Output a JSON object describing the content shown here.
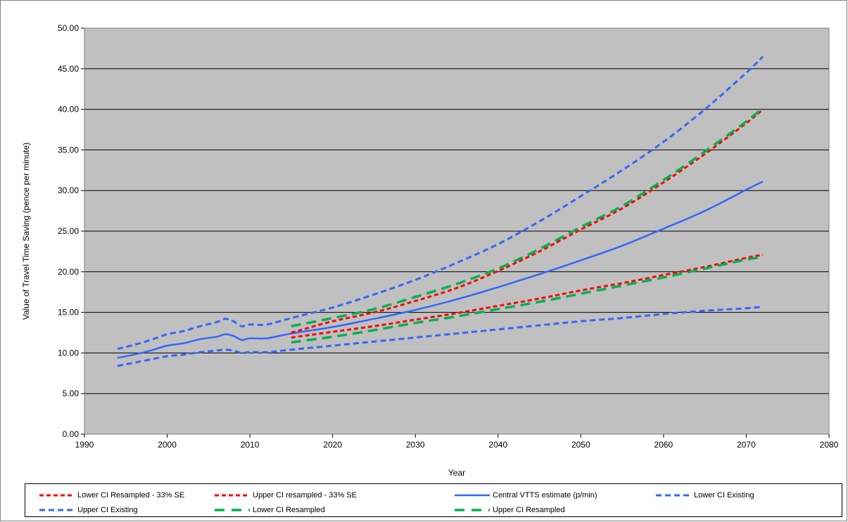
{
  "chart_data": {
    "type": "line",
    "xlabel": "Year",
    "ylabel": "Value of Travel Time Saving (pence per minute)",
    "xlim": [
      1990,
      2080
    ],
    "ylim": [
      0,
      50
    ],
    "x_ticks": [
      "1990",
      "2000",
      "2010",
      "2020",
      "2030",
      "2040",
      "2050",
      "2060",
      "2070",
      "2080"
    ],
    "y_ticks": [
      "0.00",
      "5.00",
      "10.00",
      "15.00",
      "20.00",
      "25.00",
      "30.00",
      "35.00",
      "40.00",
      "45.00",
      "50.00"
    ],
    "grid": "horizontal",
    "legend_position": "bottom",
    "plot_background": "#c0c0c0",
    "series": [
      {
        "name": "Lower CI Resampled - 33% SE",
        "color": "#ff0000",
        "style": "dotted",
        "x": [
          2015,
          2020,
          2025,
          2030,
          2035,
          2040,
          2045,
          2050,
          2055,
          2060,
          2065,
          2070,
          2072
        ],
        "y": [
          11.9,
          12.6,
          13.3,
          14.1,
          14.9,
          15.8,
          16.7,
          17.7,
          18.6,
          19.6,
          20.6,
          21.7,
          22.1
        ]
      },
      {
        "name": "Upper CI resampled - 33% SE",
        "color": "#ff0000",
        "style": "dotted",
        "x": [
          2015,
          2020,
          2025,
          2030,
          2035,
          2040,
          2045,
          2050,
          2055,
          2060,
          2065,
          2070,
          2072
        ],
        "y": [
          12.5,
          13.9,
          15.0,
          16.4,
          18.0,
          20.1,
          22.5,
          25.2,
          27.8,
          31.0,
          34.5,
          38.3,
          40.0
        ]
      },
      {
        "name": "Central VTTS estimate (p/min)",
        "color": "#3366ff",
        "style": "solid",
        "x": [
          1994,
          1996,
          1998,
          2000,
          2002,
          2004,
          2006,
          2007,
          2008,
          2009,
          2010,
          2012,
          2015,
          2020,
          2025,
          2030,
          2035,
          2040,
          2045,
          2050,
          2055,
          2060,
          2065,
          2070,
          2072
        ],
        "y": [
          9.4,
          9.8,
          10.3,
          10.9,
          11.2,
          11.7,
          12.0,
          12.3,
          12.1,
          11.6,
          11.8,
          11.8,
          12.4,
          13.2,
          14.2,
          15.3,
          16.6,
          18.1,
          19.7,
          21.4,
          23.2,
          25.3,
          27.5,
          30.1,
          31.1
        ]
      },
      {
        "name": "Lower CI Existing",
        "color": "#3366ff",
        "style": "dashed",
        "x": [
          1994,
          1996,
          1998,
          2000,
          2002,
          2004,
          2006,
          2007,
          2008,
          2009,
          2010,
          2012,
          2015,
          2020,
          2025,
          2030,
          2035,
          2040,
          2045,
          2050,
          2055,
          2060,
          2065,
          2070,
          2072
        ],
        "y": [
          8.4,
          8.8,
          9.2,
          9.6,
          9.8,
          10.1,
          10.3,
          10.4,
          10.3,
          10.0,
          10.1,
          10.1,
          10.4,
          10.9,
          11.4,
          11.9,
          12.4,
          12.9,
          13.4,
          13.9,
          14.3,
          14.8,
          15.2,
          15.5,
          15.7
        ]
      },
      {
        "name": "Upper CI Existing",
        "color": "#3366ff",
        "style": "dashed",
        "x": [
          1994,
          1996,
          1998,
          2000,
          2002,
          2004,
          2006,
          2007,
          2008,
          2009,
          2010,
          2012,
          2015,
          2020,
          2025,
          2030,
          2035,
          2040,
          2045,
          2050,
          2055,
          2060,
          2065,
          2070,
          2072
        ],
        "y": [
          10.5,
          11.0,
          11.6,
          12.3,
          12.7,
          13.3,
          13.8,
          14.2,
          13.9,
          13.3,
          13.5,
          13.5,
          14.3,
          15.6,
          17.2,
          19.0,
          21.1,
          23.4,
          26.2,
          29.3,
          32.5,
          36.0,
          40.0,
          44.5,
          46.5
        ]
      },
      {
        "name": "Lower CI Resampled",
        "color": "#00b050",
        "style": "longdash",
        "x": [
          2015,
          2020,
          2025,
          2030,
          2035,
          2040,
          2045,
          2050,
          2055,
          2060,
          2065,
          2070,
          2072
        ],
        "y": [
          11.3,
          12.0,
          12.8,
          13.7,
          14.5,
          15.4,
          16.3,
          17.3,
          18.3,
          19.3,
          20.4,
          21.5,
          21.8
        ]
      },
      {
        "name": "Upper CI Resampled",
        "color": "#00b050",
        "style": "longdash",
        "x": [
          2015,
          2020,
          2025,
          2030,
          2035,
          2040,
          2045,
          2050,
          2055,
          2060,
          2065,
          2070,
          2072
        ],
        "y": [
          13.3,
          14.3,
          15.4,
          16.9,
          18.5,
          20.4,
          22.8,
          25.5,
          28.1,
          31.3,
          34.8,
          38.5,
          40.2
        ]
      }
    ]
  }
}
